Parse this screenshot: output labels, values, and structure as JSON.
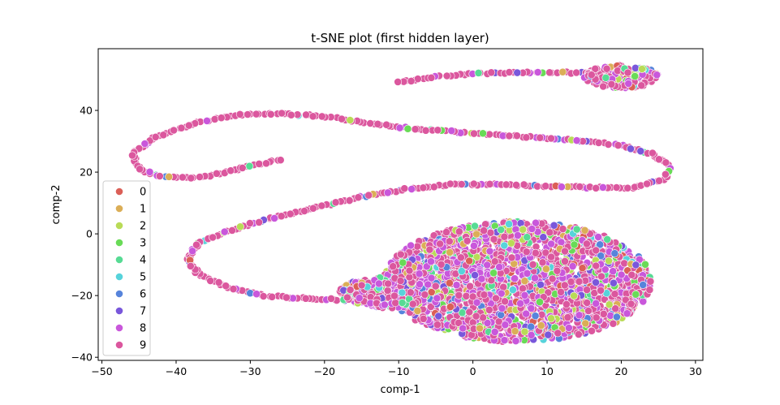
{
  "chart_data": {
    "type": "scatter",
    "title": "t-SNE plot (first hidden layer)",
    "xlabel": "comp-1",
    "ylabel": "comp-2",
    "xlim": [
      -50.5,
      31
    ],
    "ylim": [
      -41,
      60
    ],
    "x_ticks": [
      -50,
      -40,
      -30,
      -20,
      -10,
      0,
      10,
      20,
      30
    ],
    "y_ticks": [
      -40,
      -20,
      0,
      20,
      40
    ],
    "grid": false,
    "legend_placement": "lower-left",
    "series": [
      {
        "name": "0",
        "color": "#db5f57"
      },
      {
        "name": "1",
        "color": "#dbae57"
      },
      {
        "name": "2",
        "color": "#b9db57"
      },
      {
        "name": "3",
        "color": "#69db57"
      },
      {
        "name": "4",
        "color": "#57db94"
      },
      {
        "name": "5",
        "color": "#57d3db"
      },
      {
        "name": "6",
        "color": "#5784db"
      },
      {
        "name": "7",
        "color": "#7957db"
      },
      {
        "name": "8",
        "color": "#c957db"
      },
      {
        "name": "9",
        "color": "#db579e"
      }
    ],
    "structure": {
      "curve_path": [
        [
          -26,
          24
        ],
        [
          -30,
          22
        ],
        [
          -34,
          19.5
        ],
        [
          -38,
          18
        ],
        [
          -42,
          18.5
        ],
        [
          -45,
          21
        ],
        [
          -46,
          26
        ],
        [
          -43,
          31
        ],
        [
          -38,
          35.5
        ],
        [
          -32,
          38.5
        ],
        [
          -26,
          39
        ],
        [
          -20,
          38
        ],
        [
          -14,
          36
        ],
        [
          -8,
          34
        ],
        [
          -2,
          33
        ],
        [
          4,
          32
        ],
        [
          10,
          31
        ],
        [
          16,
          30
        ],
        [
          20,
          28.5
        ],
        [
          24,
          26
        ],
        [
          26.5,
          22
        ],
        [
          26,
          18
        ],
        [
          22,
          15
        ],
        [
          16,
          15
        ],
        [
          10,
          15.5
        ],
        [
          4,
          16
        ],
        [
          -3,
          16
        ],
        [
          -9,
          14.5
        ],
        [
          -15,
          12
        ],
        [
          -22,
          8
        ],
        [
          -28,
          4.5
        ],
        [
          -33,
          1
        ],
        [
          -37,
          -3
        ],
        [
          -38.5,
          -8
        ],
        [
          -37,
          -13
        ],
        [
          -33,
          -17.5
        ],
        [
          -28,
          -20
        ],
        [
          -22,
          -21
        ],
        [
          -16,
          -21.5
        ]
      ],
      "top_path": [
        [
          -10,
          49
        ],
        [
          -5,
          51
        ],
        [
          0,
          52
        ],
        [
          6,
          52.3
        ],
        [
          12,
          52.3
        ],
        [
          17,
          52
        ]
      ],
      "blobs": [
        {
          "cx": 20,
          "cy": 51,
          "rx": 5,
          "ry": 3.7,
          "count": 220
        },
        {
          "cx": 6,
          "cy": -15.5,
          "rx": 18,
          "ry": 19.5,
          "count": 2300
        },
        {
          "cx": -11,
          "cy": -19,
          "rx": 7,
          "ry": 5,
          "count": 350
        }
      ]
    }
  }
}
